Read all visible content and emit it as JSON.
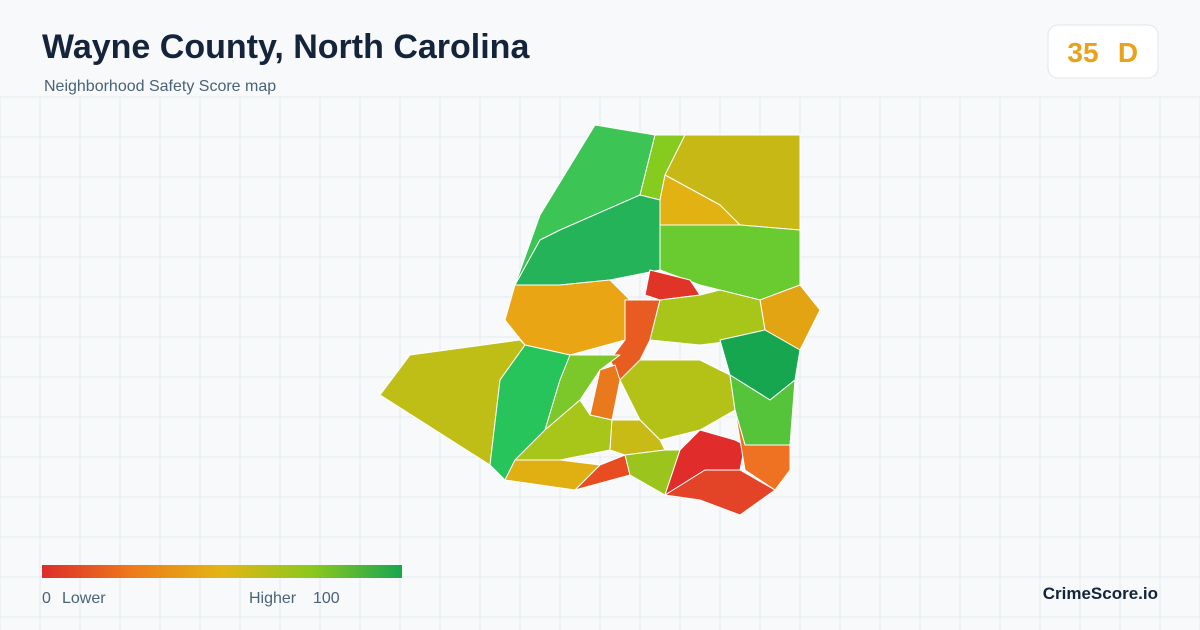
{
  "header": {
    "title": "Wayne County, North Carolina",
    "subtitle": "Neighborhood Safety Score map"
  },
  "score": {
    "value": "35",
    "grade": "D"
  },
  "legend": {
    "min": "0",
    "min_label": "Lower",
    "max_label": "Higher",
    "max": "100"
  },
  "brand": "CrimeScore.io"
}
